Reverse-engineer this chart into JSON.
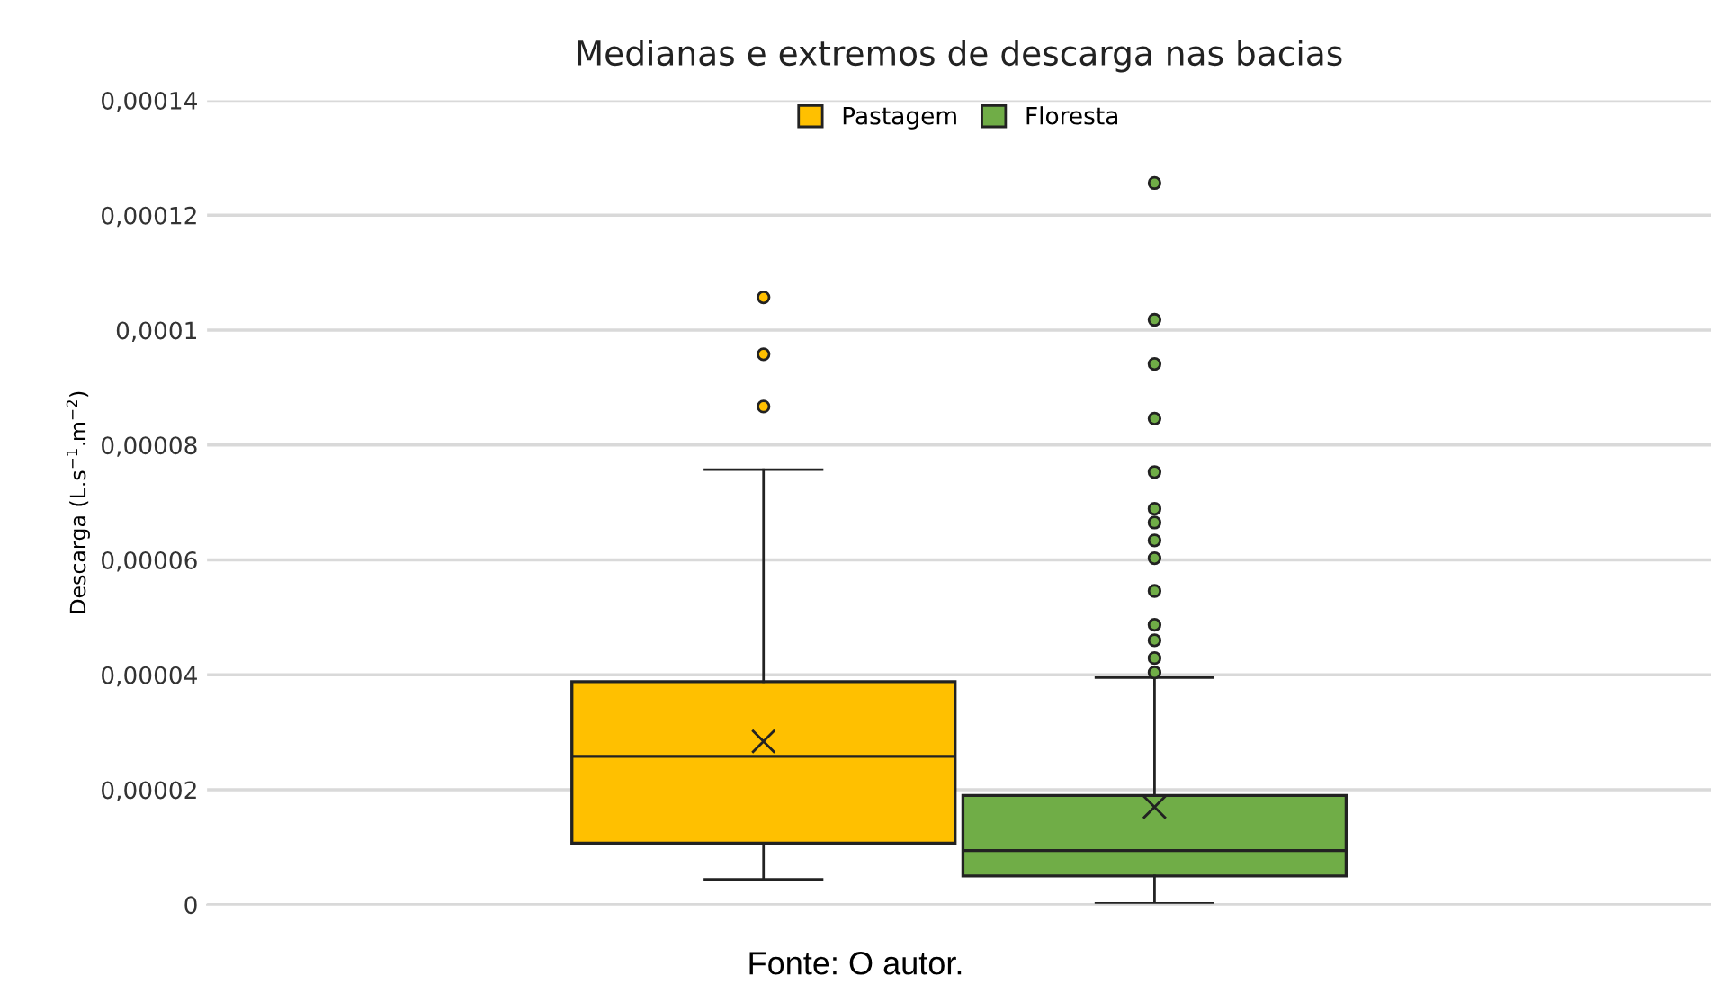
{
  "chart_data": {
    "type": "box",
    "title": "Medianas e extremos de descarga nas bacias",
    "ylabel": "Descarga (L.s$^{−1}$.m$^{−2}$)",
    "categories": [
      null
    ],
    "series": [
      {
        "name": "Pastagem",
        "color": "#ffc000",
        "boxes": [
          {
            "low": 4.4e-06,
            "q1": 1.07e-05,
            "median": 2.58e-05,
            "q3": 3.88e-05,
            "high": 7.57e-05,
            "mean": 2.84e-05,
            "outliers": [
              0.0001057,
              9.58e-05,
              8.67e-05
            ]
          }
        ]
      },
      {
        "name": "Floresta",
        "color": "#70ad47",
        "boxes": [
          {
            "low": 2e-07,
            "q1": 5e-06,
            "median": 9.4e-06,
            "q3": 1.9e-05,
            "high": 3.95e-05,
            "mean": 1.7e-05,
            "outliers": [
              0.0001256,
              0.0001018,
              9.41e-05,
              8.46e-05,
              7.53e-05,
              6.89e-05,
              6.65e-05,
              6.34e-05,
              6.03e-05,
              5.46e-05,
              4.87e-05,
              4.6e-05,
              4.29e-05,
              4.04e-05
            ]
          }
        ]
      }
    ],
    "ylim": [
      0,
      0.00014
    ],
    "yticks": [
      0,
      {
        "value": 2e-05,
        "label": "0,00002"
      },
      {
        "value": 4e-05,
        "label": "0,00004"
      },
      {
        "value": 6e-05,
        "label": "0,00006"
      },
      {
        "value": 8e-05,
        "label": "0,00008"
      },
      {
        "value": 0.0001,
        "label": "0,0001"
      },
      {
        "value": 0.00012,
        "label": "0,00012"
      },
      {
        "value": 0.00014,
        "label": "0,00014"
      }
    ],
    "grid": "y",
    "legend": "top",
    "marker": "circle",
    "annotations": [
      "Fonte: O autor."
    ]
  }
}
